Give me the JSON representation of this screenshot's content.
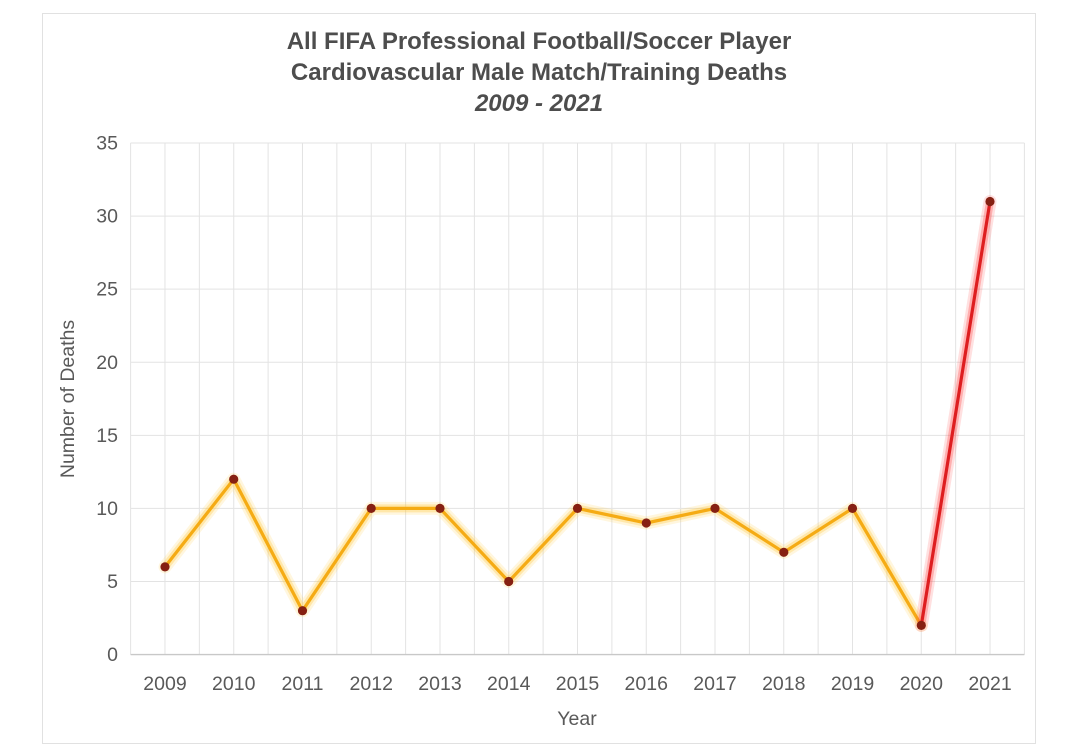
{
  "chart_data": {
    "type": "line",
    "title_lines": [
      "All FIFA Professional Football/Soccer Player",
      "Cardiovascular Male Match/Training Deaths",
      "2009 - 2021"
    ],
    "xlabel": "Year",
    "ylabel": "Number of Deaths",
    "categories": [
      "2009",
      "2010",
      "2011",
      "2012",
      "2013",
      "2014",
      "2015",
      "2016",
      "2017",
      "2018",
      "2019",
      "2020",
      "2021"
    ],
    "values": [
      6,
      12,
      3,
      10,
      10,
      5,
      10,
      9,
      10,
      7,
      10,
      2,
      31
    ],
    "ylim": [
      0,
      35
    ],
    "ytick_step": 5,
    "grid": true,
    "legend": "none",
    "highlight_segment": {
      "from": "2020",
      "to": "2021"
    },
    "colors": {
      "line": "#f5ab14",
      "line_glow": "#ffc530",
      "highlight": "#de1e20",
      "highlight_glow": "#ff4040",
      "marker": "#862012",
      "grid": "#e3e3e3",
      "axis": "#c8c8c8",
      "tick_text": "#595959",
      "title_text": "#4d4d4d",
      "frame_border": "#e1e1e1",
      "background": "#ffffff"
    }
  }
}
